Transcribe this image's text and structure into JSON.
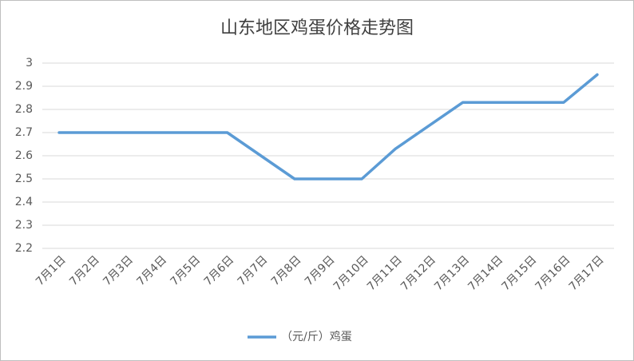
{
  "chart_data": {
    "type": "line",
    "title": "山东地区鸡蛋价格走势图",
    "categories": [
      "7月1日",
      "7月2日",
      "7月3日",
      "7月4日",
      "7月5日",
      "7月6日",
      "7月7日",
      "7月8日",
      "7月9日",
      "7月10日",
      "7月11日",
      "7月12日",
      "7月13日",
      "7月14日",
      "7月15日",
      "7月16日",
      "7月17日"
    ],
    "series": [
      {
        "name": "（元/斤）鸡蛋",
        "color": "#5b9bd5",
        "values": [
          2.7,
          2.7,
          2.7,
          2.7,
          2.7,
          2.7,
          2.6,
          2.5,
          2.5,
          2.5,
          2.63,
          2.73,
          2.83,
          2.83,
          2.83,
          2.83,
          2.95
        ]
      }
    ],
    "ylim": [
      2.2,
      3
    ],
    "yticks": [
      2.2,
      2.3,
      2.4,
      2.5,
      2.6,
      2.7,
      2.8,
      2.9,
      3
    ],
    "grid": true,
    "legend": "bottom"
  }
}
